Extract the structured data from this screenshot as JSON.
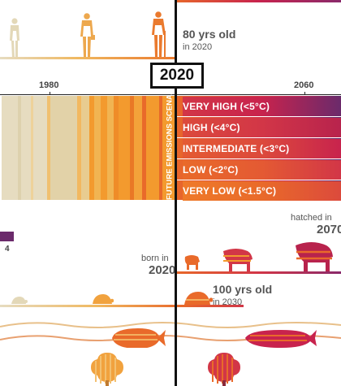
{
  "people": {
    "label_age": "80 yrs old",
    "label_year": "in 2020"
  },
  "timeline": {
    "current_year": "2020",
    "tick_1980": "1980",
    "tick_2060": "2060"
  },
  "scenarios": {
    "vertical_label": "FUTURE EMISSIONS SCENARIOS",
    "levels": [
      {
        "label": "VERY HIGH (<5°C)",
        "color": "#c8234d"
      },
      {
        "label": "HIGH (<4°C)",
        "color": "#d23647"
      },
      {
        "label": "INTERMEDIATE (<3°C)",
        "color": "#dc4a3c"
      },
      {
        "label": "LOW (<2°C)",
        "color": "#e45a33"
      },
      {
        "label": "VERY LOW (<1.5°C)",
        "color": "#e96a2a"
      }
    ]
  },
  "legend": {
    "tick_value": "4"
  },
  "animals": {
    "hatched_label": "hatched in",
    "hatched_year": "2070",
    "born_label": "born in",
    "born_year": "2020",
    "tortoise_age": "100 yrs old",
    "tortoise_year": "in 2030"
  },
  "colors": {
    "orange": "#f39a2e",
    "deep_orange": "#e8682a",
    "red": "#c8234d",
    "purple": "#6b2a6b",
    "beige": "#e8dcc0",
    "olive_light": "#ddd3b0"
  }
}
